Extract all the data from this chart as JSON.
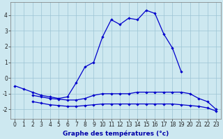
{
  "xlabel": "Graphe des températures (°c)",
  "ylim": [
    -2.6,
    4.8
  ],
  "xlim": [
    -0.5,
    23.5
  ],
  "yticks": [
    -2,
    -1,
    0,
    1,
    2,
    3,
    4
  ],
  "xticks": [
    0,
    1,
    2,
    3,
    4,
    5,
    6,
    7,
    8,
    9,
    10,
    11,
    12,
    13,
    14,
    15,
    16,
    17,
    18,
    19,
    20,
    21,
    22,
    23
  ],
  "bg_color": "#cde8f0",
  "grid_color": "#9cc4d4",
  "line_color": "#0000cc",
  "curve_main_x": [
    0,
    1,
    2,
    3,
    4,
    5,
    6,
    7,
    8,
    9,
    10,
    11,
    12,
    13,
    14,
    15,
    16,
    17,
    18,
    19
  ],
  "curve_main_y": [
    -0.5,
    -0.7,
    -0.9,
    -1.1,
    -1.2,
    -1.3,
    -1.2,
    -0.3,
    0.7,
    1.0,
    2.6,
    3.7,
    3.4,
    3.8,
    3.7,
    4.3,
    4.1,
    2.8,
    1.9,
    0.4
  ],
  "curve_upper_x": [
    2,
    3,
    4,
    5,
    6,
    7,
    8,
    9,
    10,
    11,
    12,
    13,
    14,
    15,
    16,
    17,
    18,
    19,
    20,
    21,
    22,
    23
  ],
  "curve_upper_y": [
    -1.1,
    -1.2,
    -1.3,
    -1.35,
    -1.4,
    -1.4,
    -1.3,
    -1.1,
    -1.0,
    -1.0,
    -1.0,
    -1.0,
    -0.9,
    -0.9,
    -0.9,
    -0.9,
    -0.9,
    -0.9,
    -1.0,
    -1.3,
    -1.5,
    -2.0
  ],
  "curve_lower_x": [
    2,
    3,
    4,
    5,
    6,
    7,
    8,
    9,
    10,
    11,
    12,
    13,
    14,
    15,
    16,
    17,
    18,
    19,
    20,
    21,
    22,
    23
  ],
  "curve_lower_y": [
    -1.5,
    -1.6,
    -1.7,
    -1.75,
    -1.8,
    -1.8,
    -1.75,
    -1.7,
    -1.65,
    -1.65,
    -1.65,
    -1.65,
    -1.65,
    -1.65,
    -1.65,
    -1.65,
    -1.65,
    -1.7,
    -1.75,
    -1.8,
    -1.9,
    -2.1
  ],
  "xlabel_color": "#0000aa",
  "xlabel_fontsize": 6.5,
  "tick_fontsize": 5.5,
  "linewidth": 0.9,
  "markersize": 2.2
}
